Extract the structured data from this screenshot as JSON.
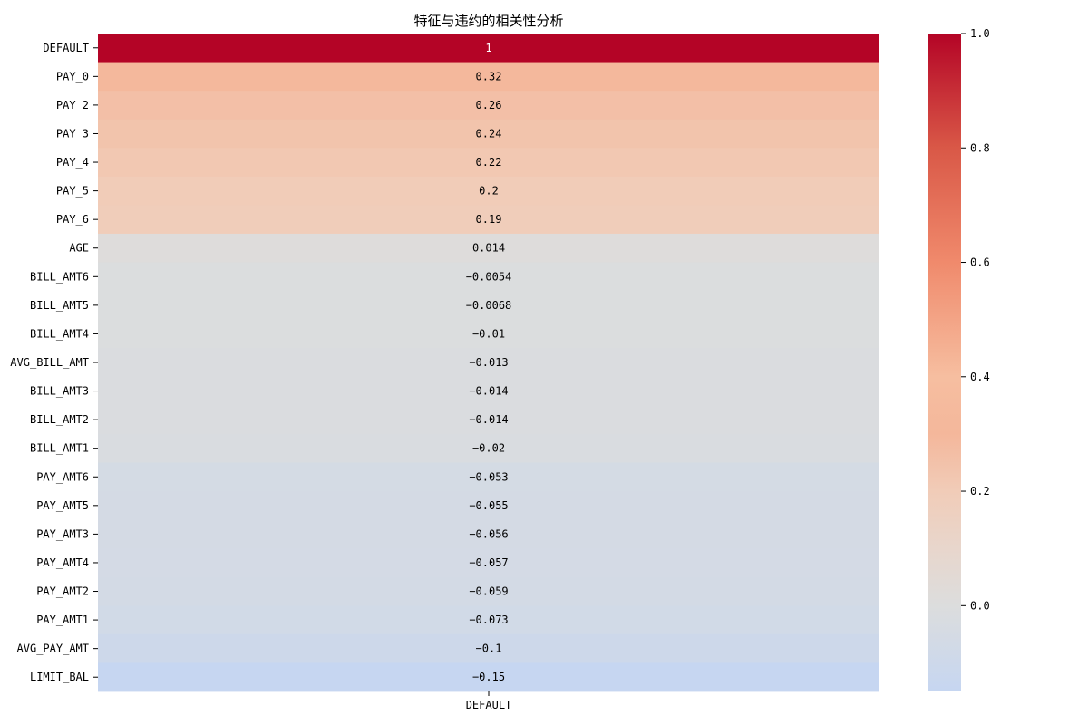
{
  "chart_data": {
    "type": "heatmap",
    "title": "特征与违约的相关性分析",
    "columns": [
      "DEFAULT"
    ],
    "rows": [
      "DEFAULT",
      "PAY_0",
      "PAY_2",
      "PAY_3",
      "PAY_4",
      "PAY_5",
      "PAY_6",
      "AGE",
      "BILL_AMT6",
      "BILL_AMT5",
      "BILL_AMT4",
      "AVG_BILL_AMT",
      "BILL_AMT3",
      "BILL_AMT2",
      "BILL_AMT1",
      "PAY_AMT6",
      "PAY_AMT5",
      "PAY_AMT3",
      "PAY_AMT4",
      "PAY_AMT2",
      "PAY_AMT1",
      "AVG_PAY_AMT",
      "LIMIT_BAL"
    ],
    "values": [
      1,
      0.32,
      0.26,
      0.24,
      0.22,
      0.2,
      0.19,
      0.014,
      -0.0054,
      -0.0068,
      -0.01,
      -0.013,
      -0.014,
      -0.014,
      -0.02,
      -0.053,
      -0.055,
      -0.056,
      -0.057,
      -0.059,
      -0.073,
      -0.1,
      -0.15
    ],
    "annotations": [
      "1",
      "0.32",
      "0.26",
      "0.24",
      "0.22",
      "0.2",
      "0.19",
      "0.014",
      "−0.0054",
      "−0.0068",
      "−0.01",
      "−0.013",
      "−0.014",
      "−0.014",
      "−0.02",
      "−0.053",
      "−0.055",
      "−0.056",
      "−0.057",
      "−0.059",
      "−0.073",
      "−0.1",
      "−0.15"
    ],
    "colormap": "coolwarm",
    "colormap_stops": [
      {
        "value": 1.0,
        "color": "#b40426"
      },
      {
        "value": 0.8,
        "color": "#d95847"
      },
      {
        "value": 0.6,
        "color": "#f08a6c"
      },
      {
        "value": 0.4,
        "color": "#f6bea0"
      },
      {
        "value": 0.3,
        "color": "#f4b79b"
      },
      {
        "value": 0.2,
        "color": "#f1ccb8"
      },
      {
        "value": 0.1,
        "color": "#e8d6cc"
      },
      {
        "value": 0.0,
        "color": "#dcdddd"
      },
      {
        "value": -0.15,
        "color": "#c6d6f1"
      }
    ],
    "colorbar": {
      "range": [
        -0.15,
        1.0
      ],
      "ticks": [
        1.0,
        0.8,
        0.6,
        0.4,
        0.2,
        0.0
      ],
      "tick_labels": [
        "1.0",
        "0.8",
        "0.6",
        "0.4",
        "0.2",
        "0.0"
      ]
    }
  }
}
